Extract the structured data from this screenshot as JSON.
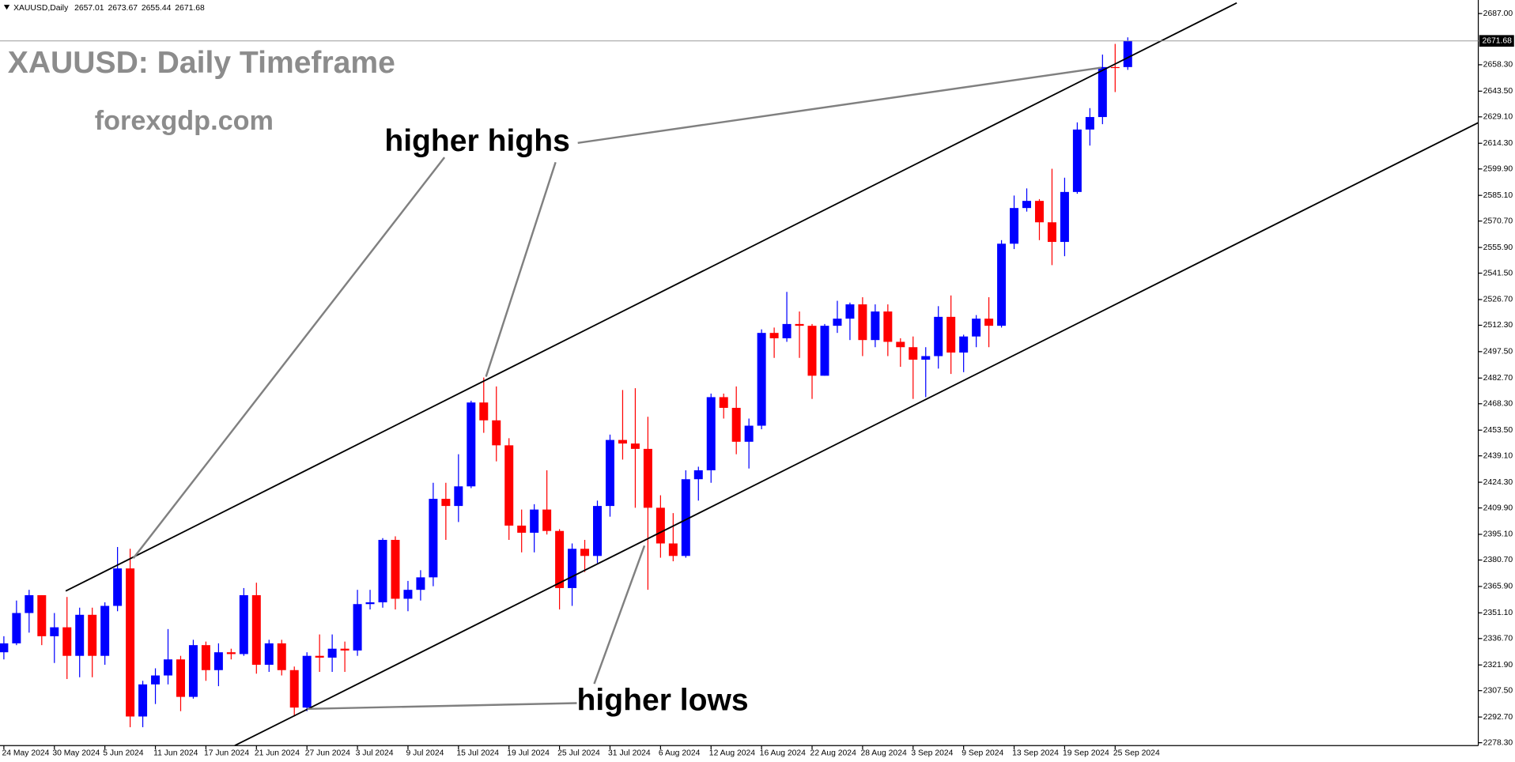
{
  "chart_data": {
    "type": "candlestick",
    "header_symbol": "XAUUSD,Daily",
    "header_values": [
      2657.01,
      2673.67,
      2655.44,
      2671.68
    ],
    "title": "XAUUSD: Daily Timeframe",
    "subtitle": "forexgdp.com",
    "annotations": [
      "higher highs",
      "higher lows"
    ],
    "up_color": "#0000ff",
    "down_color": "#ff0000",
    "current_price": 2671.68,
    "categories": [
      "24 May 2024",
      null,
      null,
      null,
      "30 May 2024",
      null,
      null,
      null,
      "5 Jun 2024",
      null,
      null,
      null,
      "11 Jun 2024",
      null,
      null,
      null,
      "17 Jun 2024",
      null,
      null,
      null,
      "21 Jun 2024",
      null,
      null,
      null,
      "27 Jun 2024",
      null,
      null,
      null,
      "3 Jul 2024",
      null,
      null,
      null,
      "9 Jul 2024",
      null,
      null,
      null,
      "15 Jul 2024",
      null,
      null,
      null,
      "19 Jul 2024",
      null,
      null,
      null,
      "25 Jul 2024",
      null,
      null,
      null,
      "31 Jul 2024",
      null,
      null,
      null,
      "6 Aug 2024",
      null,
      null,
      null,
      "12 Aug 2024",
      null,
      null,
      null,
      "16 Aug 2024",
      null,
      null,
      null,
      "22 Aug 2024",
      null,
      null,
      null,
      "28 Aug 2024",
      null,
      null,
      null,
      "3 Sep 2024",
      null,
      null,
      null,
      "9 Sep 2024",
      null,
      null,
      null,
      "13 Sep 2024",
      null,
      null,
      null,
      "19 Sep 2024",
      null,
      null,
      null,
      "25 Sep 2024",
      null
    ],
    "open": [
      2329,
      2334,
      2351,
      2361,
      2338,
      2343,
      2327,
      2350,
      2327,
      2355,
      2376,
      2293,
      2311,
      2316,
      2325,
      2304,
      2333,
      2319,
      2329,
      2328,
      2361,
      2322,
      2334,
      2319,
      2298,
      2327,
      2326,
      2331,
      2330,
      2356,
      2357,
      2392,
      2359,
      2364,
      2371,
      2415,
      2411,
      2422,
      2469,
      2459,
      2445,
      2400,
      2396,
      2409,
      2397,
      2365,
      2387,
      2383,
      2411,
      2448,
      2446,
      2443,
      2410,
      2390,
      2383,
      2426,
      2431,
      2472,
      2466,
      2447,
      2456,
      2508,
      2505,
      2513,
      2512,
      2484,
      2512,
      2516,
      2524,
      2504,
      2520,
      2503,
      2500,
      2493,
      2495,
      2517,
      2497,
      2506,
      2516,
      2512,
      2558,
      2578,
      2582,
      2570,
      2559,
      2587,
      2622,
      2629,
      2657,
      2657.01
    ],
    "high": [
      2338,
      2358,
      2364,
      2361,
      2351,
      2360,
      2354,
      2354,
      2357,
      2388,
      2387,
      2313,
      2320,
      2342,
      2327,
      2336,
      2335,
      2334,
      2331,
      2365,
      2368,
      2336,
      2336,
      2321,
      2329,
      2339,
      2339,
      2335,
      2364,
      2364,
      2393,
      2394,
      2369,
      2375,
      2424,
      2424,
      2440,
      2470,
      2483,
      2478,
      2449,
      2409,
      2412,
      2431,
      2398,
      2390,
      2392,
      2414,
      2451,
      2476,
      2477,
      2461,
      2417,
      2407,
      2431,
      2433,
      2474,
      2474,
      2478,
      2460,
      2510,
      2511,
      2531,
      2520,
      2513,
      2513,
      2526,
      2525,
      2528,
      2524,
      2524,
      2505,
      2506,
      2500,
      2523,
      2529,
      2507,
      2518,
      2528,
      2560,
      2585,
      2589,
      2583,
      2600,
      2595,
      2626,
      2634,
      2664,
      2670,
      2673.67
    ],
    "low": [
      2325,
      2333,
      2340,
      2333,
      2323,
      2314,
      2315,
      2315,
      2322,
      2352,
      2287,
      2287,
      2300,
      2311,
      2296,
      2303,
      2313,
      2310,
      2325,
      2327,
      2317,
      2318,
      2316,
      2293,
      2296,
      2318,
      2318,
      2318,
      2327,
      2353,
      2354,
      2353,
      2352,
      2358,
      2366,
      2392,
      2402,
      2421,
      2452,
      2436,
      2392,
      2385,
      2385,
      2395,
      2353,
      2355,
      2374,
      2379,
      2405,
      2437,
      2410,
      2364,
      2382,
      2380,
      2382,
      2414,
      2424,
      2460,
      2440,
      2432,
      2454,
      2494,
      2503,
      2494,
      2471,
      2484,
      2508,
      2504,
      2495,
      2500,
      2495,
      2489,
      2471,
      2472,
      2488,
      2485,
      2486,
      2500,
      2500,
      2511,
      2555,
      2576,
      2560,
      2546,
      2551,
      2586,
      2613,
      2625,
      2643,
      2655.44
    ],
    "close": [
      2334,
      2351,
      2361,
      2338,
      2343,
      2327,
      2350,
      2327,
      2355,
      2376,
      2293,
      2311,
      2316,
      2325,
      2304,
      2333,
      2319,
      2329,
      2328,
      2361,
      2322,
      2334,
      2319,
      2298,
      2327,
      2326,
      2331,
      2330,
      2356,
      2357,
      2392,
      2359,
      2364,
      2371,
      2415,
      2411,
      2422,
      2469,
      2459,
      2445,
      2400,
      2396,
      2409,
      2397,
      2365,
      2387,
      2383,
      2411,
      2448,
      2446,
      2443,
      2410,
      2390,
      2383,
      2426,
      2431,
      2472,
      2466,
      2447,
      2456,
      2508,
      2505,
      2513,
      2512,
      2484,
      2512,
      2516,
      2524,
      2504,
      2520,
      2503,
      2500,
      2493,
      2495,
      2517,
      2497,
      2506,
      2516,
      2512,
      2558,
      2578,
      2582,
      2570,
      2559,
      2587,
      2622,
      2629,
      2657,
      2657,
      2671.68
    ],
    "ylim": [
      2276.7,
      2694.6
    ],
    "yticks": [
      {
        "value": 2687,
        "label": "2687.00"
      },
      {
        "value": 2658.3,
        "label": "2658.30"
      },
      {
        "value": 2643.5,
        "label": "2643.50"
      },
      {
        "value": 2629.1,
        "label": "2629.10"
      },
      {
        "value": 2614.3,
        "label": "2614.30"
      },
      {
        "value": 2599.9,
        "label": "2599.90"
      },
      {
        "value": 2585.1,
        "label": "2585.10"
      },
      {
        "value": 2570.7,
        "label": "2570.70"
      },
      {
        "value": 2555.9,
        "label": "2555.90"
      },
      {
        "value": 2541.5,
        "label": "2541.50"
      },
      {
        "value": 2526.7,
        "label": "2526.70"
      },
      {
        "value": 2512.3,
        "label": "2512.30"
      },
      {
        "value": 2497.5,
        "label": "2497.50"
      },
      {
        "value": 2482.7,
        "label": "2482.70"
      },
      {
        "value": 2468.3,
        "label": "2468.30"
      },
      {
        "value": 2453.5,
        "label": "2453.50"
      },
      {
        "value": 2439.1,
        "label": "2439.10"
      },
      {
        "value": 2424.3,
        "label": "2424.30"
      },
      {
        "value": 2409.9,
        "label": "2409.90"
      },
      {
        "value": 2395.1,
        "label": "2395.10"
      },
      {
        "value": 2380.7,
        "label": "2380.70"
      },
      {
        "value": 2365.9,
        "label": "2365.90"
      },
      {
        "value": 2351.1,
        "label": "2351.10"
      },
      {
        "value": 2336.7,
        "label": "2336.70"
      },
      {
        "value": 2321.9,
        "label": "2321.90"
      },
      {
        "value": 2307.5,
        "label": "2307.50"
      },
      {
        "value": 2292.7,
        "label": "2292.70"
      },
      {
        "value": 2278.3,
        "label": "2278.30"
      }
    ]
  }
}
